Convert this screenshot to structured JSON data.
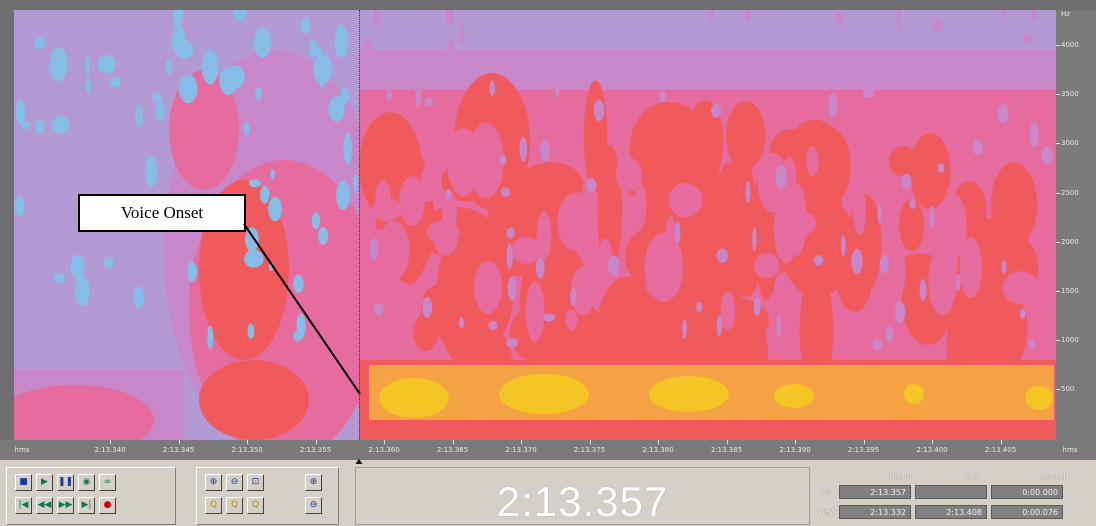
{
  "annotation": {
    "label": "Voice Onset"
  },
  "frequency_axis": {
    "unit": "Hz",
    "ticks": [
      "4000",
      "3500",
      "3000",
      "2500",
      "2000",
      "1500",
      "1000",
      "500"
    ]
  },
  "time_axis": {
    "unit": "hms",
    "ticks": [
      "2:13.340",
      "2:13.345",
      "2:13.350",
      "2:13.355",
      "2:13.360",
      "2:13.365",
      "2:13.370",
      "2:13.375",
      "2:13.380",
      "2:13.385",
      "2:13.390",
      "2:13.395",
      "2:13.400",
      "2:13.405"
    ]
  },
  "transport": {
    "row1": [
      {
        "name": "stop-icon",
        "glyph": "■",
        "color": "b"
      },
      {
        "name": "play-icon",
        "glyph": "▶",
        "color": "g"
      },
      {
        "name": "pause-icon",
        "glyph": "❚❚",
        "color": "b"
      },
      {
        "name": "play-to-end-icon",
        "glyph": "◉",
        "color": "g"
      },
      {
        "name": "loop-icon",
        "glyph": "∞",
        "color": "g"
      }
    ],
    "row2": [
      {
        "name": "go-to-start-icon",
        "glyph": "|◀",
        "color": "g"
      },
      {
        "name": "rewind-icon",
        "glyph": "◀◀",
        "color": "g"
      },
      {
        "name": "fast-forward-icon",
        "glyph": "▶▶",
        "color": "g"
      },
      {
        "name": "go-to-end-icon",
        "glyph": "▶|",
        "color": "g"
      },
      {
        "name": "record-icon",
        "glyph": "●",
        "color": "r"
      }
    ]
  },
  "zoom": {
    "row1": [
      {
        "name": "zoom-in-horizontal-icon",
        "glyph": "⊕",
        "color": "b"
      },
      {
        "name": "zoom-out-horizontal-icon",
        "glyph": "⊖",
        "color": "b"
      },
      {
        "name": "zoom-full-icon",
        "glyph": "⊡",
        "color": "b"
      }
    ],
    "row2": [
      {
        "name": "zoom-selection-icon",
        "glyph": "Q",
        "color": "y"
      },
      {
        "name": "zoom-left-icon",
        "glyph": "Q",
        "color": "y"
      },
      {
        "name": "zoom-right-icon",
        "glyph": "Q",
        "color": "y"
      }
    ],
    "vertical": [
      {
        "name": "zoom-in-vertical-icon",
        "glyph": "⊕",
        "color": "b"
      },
      {
        "name": "zoom-out-vertical-icon",
        "glyph": "⊖",
        "color": "b"
      }
    ]
  },
  "time_display": {
    "value": "2:13.357"
  },
  "selection_panel": {
    "headers": {
      "begin": "Begin",
      "end": "End",
      "length": "Length"
    },
    "sel": {
      "label": "Sel",
      "begin": "2:13.357",
      "end": "",
      "length": "0:00.000"
    },
    "view": {
      "label": "View",
      "begin": "2:13.332",
      "end": "2:13.408",
      "length": "0:00.076"
    }
  },
  "colors": {
    "silence": "#b49ad4",
    "quiet": "#c787c8",
    "low": "#e66ca0",
    "mid": "#f05a5c",
    "high": "#f4a243",
    "peak": "#f4c524",
    "speckle": "#86bde6"
  }
}
